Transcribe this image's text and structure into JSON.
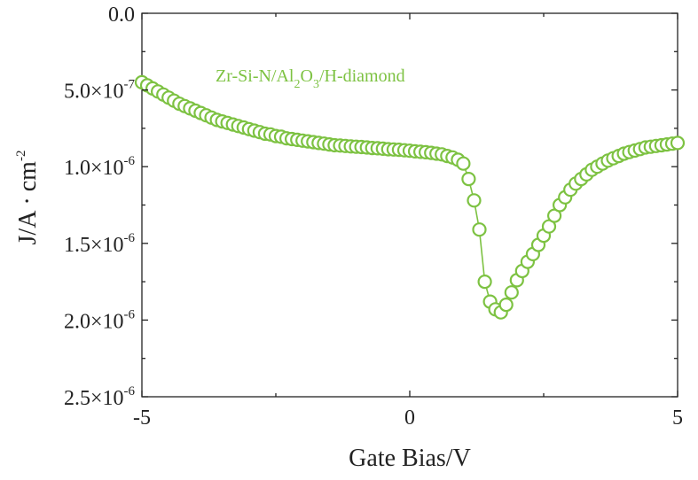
{
  "chart_data": {
    "type": "scatter",
    "xlabel": "Gate Bias/V",
    "ylabel_parts": {
      "base": "J/A",
      "dot": "·",
      "unit": "cm",
      "exp": "-2"
    },
    "xlim": [
      -5,
      5
    ],
    "ylim": [
      0,
      2.5e-06
    ],
    "y_inverted": true,
    "x_ticks": [
      {
        "value": -5,
        "label": "-5"
      },
      {
        "value": 0,
        "label": "0"
      },
      {
        "value": 5,
        "label": "5"
      }
    ],
    "y_ticks": [
      {
        "value": 0,
        "mant": "0.0",
        "exp": ""
      },
      {
        "value": 5e-07,
        "mant": "5.0×10",
        "exp": "-7"
      },
      {
        "value": 1e-06,
        "mant": "1.0×10",
        "exp": "-6"
      },
      {
        "value": 1.5e-06,
        "mant": "1.5×10",
        "exp": "-6"
      },
      {
        "value": 2e-06,
        "mant": "2.0×10",
        "exp": "-6"
      },
      {
        "value": 2.5e-06,
        "mant": "2.5×10",
        "exp": "-6"
      }
    ],
    "legend_parts": [
      "Zr-Si-N/Al",
      "2",
      "O",
      "3",
      "/H-diamond"
    ],
    "legend_position": "top-left",
    "grid": false,
    "marker": "open-circle",
    "color": "#7dc242",
    "series": [
      {
        "x": [
          -5.0,
          -4.9,
          -4.8,
          -4.7,
          -4.6,
          -4.5,
          -4.4,
          -4.3,
          -4.2,
          -4.1,
          -4.0,
          -3.9,
          -3.8,
          -3.7,
          -3.6,
          -3.5,
          -3.4,
          -3.3,
          -3.2,
          -3.1,
          -3.0,
          -2.9,
          -2.8,
          -2.7,
          -2.6,
          -2.5,
          -2.4,
          -2.3,
          -2.2,
          -2.1,
          -2.0,
          -1.9,
          -1.8,
          -1.7,
          -1.6,
          -1.5,
          -1.4,
          -1.3,
          -1.2,
          -1.1,
          -1.0,
          -0.9,
          -0.8,
          -0.7,
          -0.6,
          -0.5,
          -0.4,
          -0.3,
          -0.2,
          -0.1,
          0.0,
          0.1,
          0.2,
          0.3,
          0.4,
          0.5,
          0.6,
          0.7,
          0.8,
          0.9,
          1.0,
          1.1,
          1.2,
          1.3,
          1.4,
          1.5,
          1.6,
          1.7,
          1.8,
          1.9,
          2.0,
          2.1,
          2.2,
          2.3,
          2.4,
          2.5,
          2.6,
          2.7,
          2.8,
          2.9,
          3.0,
          3.1,
          3.2,
          3.3,
          3.4,
          3.5,
          3.6,
          3.7,
          3.8,
          3.9,
          4.0,
          4.1,
          4.2,
          4.3,
          4.4,
          4.5,
          4.6,
          4.7,
          4.8,
          4.9,
          5.0
        ],
        "y": [
          4.5e-07,
          4.7e-07,
          4.9e-07,
          5.1e-07,
          5.3e-07,
          5.5e-07,
          5.7e-07,
          5.9e-07,
          6.05e-07,
          6.2e-07,
          6.35e-07,
          6.5e-07,
          6.65e-07,
          6.8e-07,
          6.95e-07,
          7.05e-07,
          7.15e-07,
          7.25e-07,
          7.35e-07,
          7.45e-07,
          7.55e-07,
          7.65e-07,
          7.75e-07,
          7.85e-07,
          7.9e-07,
          8e-07,
          8.05e-07,
          8.15e-07,
          8.2e-07,
          8.25e-07,
          8.3e-07,
          8.35e-07,
          8.4e-07,
          8.45e-07,
          8.5e-07,
          8.55e-07,
          8.6e-07,
          8.62e-07,
          8.65e-07,
          8.68e-07,
          8.7e-07,
          8.72e-07,
          8.75e-07,
          8.78e-07,
          8.8e-07,
          8.83e-07,
          8.86e-07,
          8.88e-07,
          8.9e-07,
          8.93e-07,
          8.96e-07,
          9e-07,
          9.03e-07,
          9.06e-07,
          9.1e-07,
          9.15e-07,
          9.2e-07,
          9.3e-07,
          9.4e-07,
          9.55e-07,
          9.8e-07,
          1.08e-06,
          1.22e-06,
          1.41e-06,
          1.75e-06,
          1.88e-06,
          1.93e-06,
          1.95e-06,
          1.9e-06,
          1.82e-06,
          1.74e-06,
          1.68e-06,
          1.62e-06,
          1.57e-06,
          1.51e-06,
          1.45e-06,
          1.39e-06,
          1.32e-06,
          1.25e-06,
          1.2e-06,
          1.15e-06,
          1.11e-06,
          1.08e-06,
          1.05e-06,
          1.02e-06,
          1e-06,
          9.8e-07,
          9.6e-07,
          9.45e-07,
          9.3e-07,
          9.15e-07,
          9.05e-07,
          8.95e-07,
          8.85e-07,
          8.75e-07,
          8.7e-07,
          8.65e-07,
          8.6e-07,
          8.55e-07,
          8.5e-07,
          8.45e-07
        ]
      }
    ]
  }
}
